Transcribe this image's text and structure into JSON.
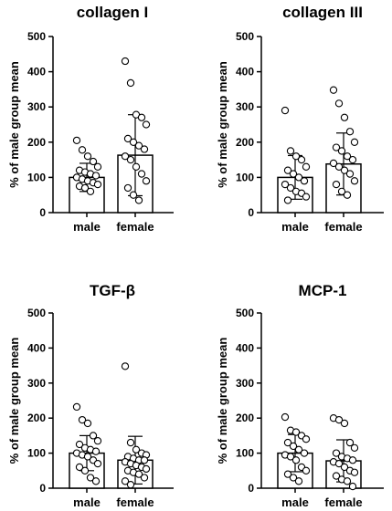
{
  "chart_data": [
    {
      "type": "bar",
      "title": "collagen I",
      "ylabel": "% of male group mean",
      "ylim": [
        0,
        500
      ],
      "yticks": [
        "0",
        "100",
        "200",
        "300",
        "400",
        "500"
      ],
      "categories": [
        "male",
        "female"
      ],
      "values": [
        100,
        163
      ],
      "error": [
        40,
        115
      ],
      "points": [
        [
          205,
          178,
          160,
          145,
          130,
          120,
          115,
          110,
          105,
          100,
          95,
          90,
          85,
          80,
          75,
          70,
          60
        ],
        [
          430,
          368,
          278,
          270,
          250,
          210,
          200,
          190,
          180,
          160,
          150,
          130,
          110,
          90,
          70,
          50,
          35
        ]
      ]
    },
    {
      "type": "bar",
      "title": "collagen III",
      "ylabel": "% of male group mean",
      "ylim": [
        0,
        500
      ],
      "yticks": [
        "0",
        "100",
        "200",
        "300",
        "400",
        "500"
      ],
      "categories": [
        "male",
        "female"
      ],
      "values": [
        100,
        138
      ],
      "error": [
        62,
        88
      ],
      "points": [
        [
          290,
          175,
          160,
          150,
          130,
          120,
          110,
          100,
          90,
          80,
          70,
          60,
          55,
          45,
          35
        ],
        [
          348,
          310,
          270,
          230,
          200,
          185,
          175,
          160,
          150,
          140,
          130,
          120,
          110,
          90,
          80,
          60,
          50
        ]
      ]
    },
    {
      "type": "bar",
      "title": "TGF-β",
      "ylabel": "% of male group mean",
      "ylim": [
        0,
        500
      ],
      "yticks": [
        "0",
        "100",
        "200",
        "300",
        "400",
        "500"
      ],
      "categories": [
        "male",
        "female"
      ],
      "values": [
        100,
        80
      ],
      "error": [
        50,
        68
      ],
      "points": [
        [
          232,
          195,
          185,
          150,
          135,
          125,
          115,
          110,
          105,
          100,
          95,
          90,
          80,
          70,
          60,
          50,
          30,
          20
        ],
        [
          348,
          130,
          110,
          100,
          95,
          90,
          85,
          80,
          80,
          75,
          70,
          65,
          60,
          55,
          50,
          45,
          40,
          30,
          20,
          10
        ]
      ]
    },
    {
      "type": "bar",
      "title": "MCP-1",
      "ylabel": "% of male group mean",
      "ylim": [
        0,
        500
      ],
      "yticks": [
        "0",
        "100",
        "200",
        "300",
        "400",
        "500"
      ],
      "categories": [
        "male",
        "female"
      ],
      "values": [
        100,
        78
      ],
      "error": [
        53,
        60
      ],
      "points": [
        [
          203,
          165,
          160,
          150,
          140,
          130,
          120,
          110,
          100,
          95,
          90,
          80,
          60,
          50,
          40,
          30,
          20
        ],
        [
          200,
          195,
          185,
          130,
          115,
          100,
          90,
          85,
          80,
          75,
          70,
          60,
          50,
          45,
          35,
          25,
          20,
          5
        ]
      ]
    }
  ]
}
